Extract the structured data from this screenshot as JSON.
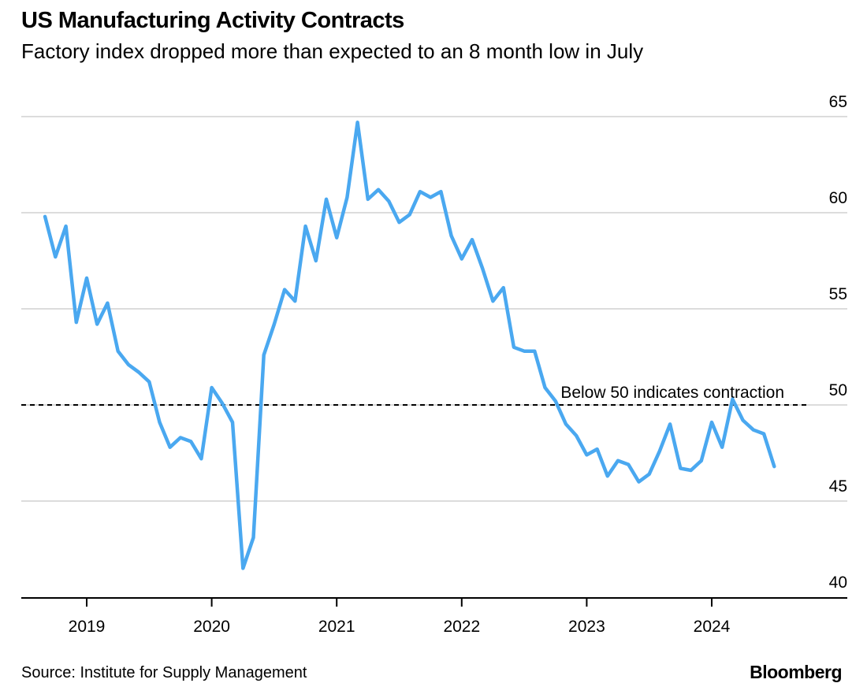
{
  "chart_data": {
    "type": "line",
    "title": "US Manufacturing Activity Contracts",
    "subtitle": "Factory index dropped more than expected to an 8 month low in July",
    "source": "Source: Institute for Supply Management",
    "brand": "Bloomberg",
    "x_ticks": [
      "2019",
      "2020",
      "2021",
      "2022",
      "2023",
      "2024"
    ],
    "y_ticks": [
      40,
      45,
      50,
      55,
      60,
      65
    ],
    "ylim": [
      40,
      65
    ],
    "xlim": [
      "2018-07",
      "2024-11"
    ],
    "grid": true,
    "y_axis_side": "right",
    "line_color": "#4aa8f0",
    "reference_line": {
      "y": 50,
      "style": "dashed",
      "label": "Below 50 indicates contraction"
    },
    "series": [
      {
        "x": [
          "2018-09",
          "2018-10",
          "2018-11",
          "2018-12",
          "2019-01",
          "2019-02",
          "2019-03",
          "2019-04",
          "2019-05",
          "2019-06",
          "2019-07",
          "2019-08",
          "2019-09",
          "2019-10",
          "2019-11",
          "2019-12",
          "2020-01",
          "2020-02",
          "2020-03",
          "2020-04",
          "2020-05",
          "2020-06",
          "2020-07",
          "2020-08",
          "2020-09",
          "2020-10",
          "2020-11",
          "2020-12",
          "2021-01",
          "2021-02",
          "2021-03",
          "2021-04",
          "2021-05",
          "2021-06",
          "2021-07",
          "2021-08",
          "2021-09",
          "2021-10",
          "2021-11",
          "2021-12",
          "2022-01",
          "2022-02",
          "2022-03",
          "2022-04",
          "2022-05",
          "2022-06",
          "2022-07",
          "2022-08",
          "2022-09",
          "2022-10",
          "2022-11",
          "2022-12",
          "2023-01",
          "2023-02",
          "2023-03",
          "2023-04",
          "2023-05",
          "2023-06",
          "2023-07",
          "2023-08",
          "2023-09",
          "2023-10",
          "2023-11",
          "2023-12",
          "2024-01",
          "2024-02",
          "2024-03",
          "2024-04",
          "2024-05",
          "2024-06",
          "2024-07"
        ],
        "values": [
          59.8,
          57.7,
          59.3,
          54.3,
          56.6,
          54.2,
          55.3,
          52.8,
          52.1,
          51.7,
          51.2,
          49.1,
          47.8,
          48.3,
          48.1,
          47.2,
          50.9,
          50.1,
          49.1,
          41.5,
          43.1,
          52.6,
          54.2,
          56.0,
          55.4,
          59.3,
          57.5,
          60.7,
          58.7,
          60.8,
          64.7,
          60.7,
          61.2,
          60.6,
          59.5,
          59.9,
          61.1,
          60.8,
          61.1,
          58.8,
          57.6,
          58.6,
          57.1,
          55.4,
          56.1,
          53.0,
          52.8,
          52.8,
          50.9,
          50.2,
          49.0,
          48.4,
          47.4,
          47.7,
          46.3,
          47.1,
          46.9,
          46.0,
          46.4,
          47.6,
          49.0,
          46.7,
          46.6,
          47.1,
          49.1,
          47.8,
          50.3,
          49.2,
          48.7,
          48.5,
          46.8
        ]
      }
    ]
  }
}
